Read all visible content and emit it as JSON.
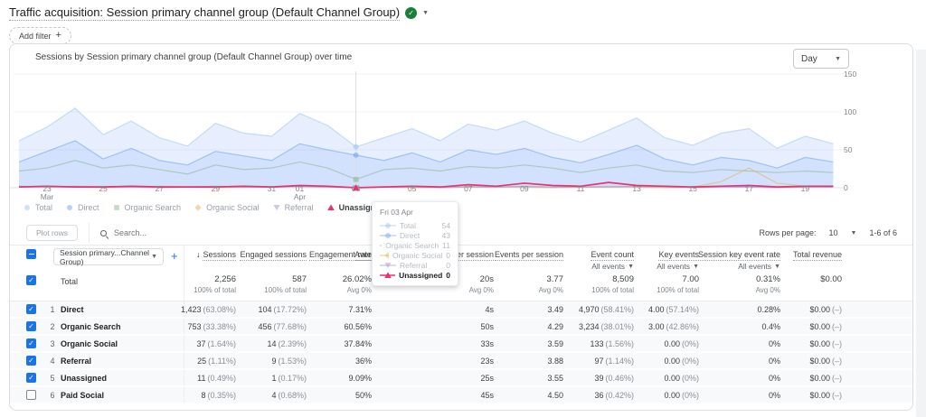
{
  "page": {
    "title": "Traffic acquisition: Session primary channel group (Default Channel Group)",
    "add_filter": "Add filter"
  },
  "chart": {
    "title": "Sessions by Session primary channel group (Default Channel Group) over time",
    "granularity": "Day"
  },
  "chart_data": {
    "type": "line",
    "title": "Sessions by Session primary channel group (Default Channel Group) over time",
    "x": [
      "Mar 22",
      "Mar 23",
      "Mar 24",
      "Mar 25",
      "Mar 26",
      "Mar 27",
      "Mar 28",
      "Mar 29",
      "Mar 30",
      "Mar 31",
      "Apr 01",
      "Apr 02",
      "Apr 03",
      "Apr 04",
      "Apr 05",
      "Apr 06",
      "Apr 07",
      "Apr 08",
      "Apr 09",
      "Apr 10",
      "Apr 11",
      "Apr 12",
      "Apr 13",
      "Apr 14",
      "Apr 15",
      "Apr 16",
      "Apr 17",
      "Apr 18",
      "Apr 19",
      "Apr 20"
    ],
    "xticks": [
      {
        "i": 1,
        "l": "23",
        "s": "Mar"
      },
      {
        "i": 3,
        "l": "25"
      },
      {
        "i": 5,
        "l": "27"
      },
      {
        "i": 7,
        "l": "29"
      },
      {
        "i": 9,
        "l": "31"
      },
      {
        "i": 10,
        "l": "01",
        "s": "Apr"
      },
      {
        "i": 12,
        "l": "03"
      },
      {
        "i": 14,
        "l": "05"
      },
      {
        "i": 16,
        "l": "07"
      },
      {
        "i": 18,
        "l": "09"
      },
      {
        "i": 20,
        "l": "11"
      },
      {
        "i": 22,
        "l": "13"
      },
      {
        "i": 24,
        "l": "15"
      },
      {
        "i": 26,
        "l": "17"
      },
      {
        "i": 28,
        "l": "19"
      }
    ],
    "ylim": [
      0,
      150
    ],
    "yticks": [
      0,
      50,
      100,
      150
    ],
    "hover_index": 12,
    "series": [
      {
        "name": "Total",
        "shape": "circle",
        "color": "#9ec4f0",
        "fill": true,
        "dim": true,
        "values": [
          62,
          80,
          105,
          70,
          88,
          66,
          55,
          85,
          72,
          68,
          98,
          82,
          54,
          66,
          78,
          62,
          84,
          76,
          88,
          72,
          60,
          76,
          92,
          66,
          56,
          72,
          78,
          52,
          68,
          58
        ]
      },
      {
        "name": "Direct",
        "shape": "circle",
        "color": "#6fa3ef",
        "fill": true,
        "dim": true,
        "values": [
          34,
          48,
          62,
          38,
          52,
          36,
          30,
          48,
          42,
          36,
          58,
          50,
          43,
          36,
          46,
          34,
          50,
          44,
          52,
          40,
          33,
          44,
          56,
          38,
          30,
          40,
          36,
          26,
          40,
          34
        ]
      },
      {
        "name": "Organic Search",
        "shape": "square",
        "color": "#8ab888",
        "dim": true,
        "values": [
          22,
          26,
          36,
          26,
          30,
          24,
          18,
          30,
          24,
          26,
          34,
          26,
          11,
          24,
          26,
          22,
          28,
          26,
          30,
          26,
          20,
          26,
          30,
          22,
          20,
          24,
          22,
          20,
          22,
          20
        ]
      },
      {
        "name": "Organic Social",
        "shape": "diamond",
        "color": "#e8b04e",
        "dim": true,
        "values": [
          1,
          2,
          1,
          0,
          1,
          2,
          1,
          0,
          1,
          1,
          2,
          1,
          0,
          1,
          0,
          1,
          2,
          1,
          1,
          0,
          1,
          2,
          1,
          0,
          1,
          8,
          26,
          6,
          2,
          1
        ]
      },
      {
        "name": "Referral",
        "shape": "tri-down",
        "color": "#9a93c9",
        "dim": true,
        "values": [
          2,
          1,
          2,
          1,
          1,
          0,
          1,
          2,
          1,
          1,
          2,
          1,
          0,
          1,
          1,
          0,
          1,
          1,
          2,
          1,
          1,
          1,
          2,
          1,
          0,
          1,
          1,
          0,
          1,
          1
        ]
      },
      {
        "name": "Unassigned",
        "shape": "tri-up",
        "color": "#e8336e",
        "dim": false,
        "values": [
          1,
          2,
          1,
          1,
          2,
          1,
          1,
          1,
          2,
          1,
          3,
          2,
          0,
          1,
          2,
          1,
          4,
          2,
          6,
          3,
          2,
          7,
          3,
          2,
          1,
          2,
          3,
          1,
          2,
          2
        ]
      }
    ]
  },
  "tooltip": {
    "date": "Fri 03 Apr",
    "rows": [
      {
        "name": "Total",
        "value": "54",
        "shape": "circle",
        "color": "#9ec4f0",
        "active": false
      },
      {
        "name": "Direct",
        "value": "43",
        "shape": "circle",
        "color": "#6fa3ef",
        "active": false
      },
      {
        "name": "Organic Search",
        "value": "11",
        "shape": "square",
        "color": "#8ab888",
        "active": false
      },
      {
        "name": "Organic Social",
        "value": "0",
        "shape": "diamond",
        "color": "#e8b04e",
        "active": false
      },
      {
        "name": "Referral",
        "value": "0",
        "shape": "tri-down",
        "color": "#9a93c9",
        "active": false
      },
      {
        "name": "Unassigned",
        "value": "0",
        "shape": "tri-up",
        "color": "#e8336e",
        "active": true
      }
    ]
  },
  "toolbar": {
    "plot_rows": "Plot rows",
    "search_placeholder": "Search...",
    "rows_per_page_label": "Rows per page:",
    "rows_per_page_value": "10",
    "range": "1-6 of 6"
  },
  "table": {
    "dimension_selector": "Session primary...Channel Group)",
    "columns": [
      {
        "label": "Sessions"
      },
      {
        "label": "Engaged sessions"
      },
      {
        "label": "Engagement rate"
      },
      {
        "label": "Average engagement time per session"
      },
      {
        "label": "Events per session"
      },
      {
        "label": "Event count",
        "sub": "All events"
      },
      {
        "label": "Key events",
        "sub": "All events"
      },
      {
        "label": "Session key event rate",
        "sub": "All events"
      },
      {
        "label": "Total revenue"
      }
    ],
    "totals": {
      "label": "Total",
      "sessions": "2,256",
      "sessions_sub": "100% of total",
      "engaged": "587",
      "engaged_sub": "100% of total",
      "rate": "26.02%",
      "rate_sub": "Avg 0%",
      "time": "20s",
      "time_sub": "Avg 0%",
      "eps": "3.77",
      "eps_sub": "Avg 0%",
      "events": "8,509",
      "events_sub": "100% of total",
      "key": "7.00",
      "key_sub": "100% of total",
      "sker": "0.31%",
      "sker_sub": "Avg 0%",
      "rev": "$0.00"
    },
    "rows": [
      {
        "num": "1",
        "channel": "Direct",
        "sessions": "1,423",
        "sessions_pct": "(63.08%)",
        "engaged": "104",
        "engaged_pct": "(17.72%)",
        "rate": "7.31%",
        "time": "4s",
        "eps": "3.49",
        "events": "4,970",
        "events_pct": "(58.41%)",
        "key": "4.00",
        "key_pct": "(57.14%)",
        "sker": "0.28%",
        "rev": "$0.00",
        "rev_sfx": "(–)",
        "checked": true
      },
      {
        "num": "2",
        "channel": "Organic Search",
        "sessions": "753",
        "sessions_pct": "(33.38%)",
        "engaged": "456",
        "engaged_pct": "(77.68%)",
        "rate": "60.56%",
        "time": "50s",
        "eps": "4.29",
        "events": "3,234",
        "events_pct": "(38.01%)",
        "key": "3.00",
        "key_pct": "(42.86%)",
        "sker": "0.4%",
        "rev": "$0.00",
        "rev_sfx": "(–)",
        "checked": true
      },
      {
        "num": "3",
        "channel": "Organic Social",
        "sessions": "37",
        "sessions_pct": "(1.64%)",
        "engaged": "14",
        "engaged_pct": "(2.39%)",
        "rate": "37.84%",
        "time": "33s",
        "eps": "3.59",
        "events": "133",
        "events_pct": "(1.56%)",
        "key": "0.00",
        "key_pct": "(0%)",
        "sker": "0%",
        "rev": "$0.00",
        "rev_sfx": "(–)",
        "checked": true
      },
      {
        "num": "4",
        "channel": "Referral",
        "sessions": "25",
        "sessions_pct": "(1.11%)",
        "engaged": "9",
        "engaged_pct": "(1.53%)",
        "rate": "36%",
        "time": "23s",
        "eps": "3.88",
        "events": "97",
        "events_pct": "(1.14%)",
        "key": "0.00",
        "key_pct": "(0%)",
        "sker": "0%",
        "rev": "$0.00",
        "rev_sfx": "(–)",
        "checked": true
      },
      {
        "num": "5",
        "channel": "Unassigned",
        "sessions": "11",
        "sessions_pct": "(0.49%)",
        "engaged": "1",
        "engaged_pct": "(0.17%)",
        "rate": "9.09%",
        "time": "25s",
        "eps": "3.55",
        "events": "39",
        "events_pct": "(0.46%)",
        "key": "0.00",
        "key_pct": "(0%)",
        "sker": "0%",
        "rev": "$0.00",
        "rev_sfx": "(–)",
        "checked": true
      },
      {
        "num": "6",
        "channel": "Paid Social",
        "sessions": "8",
        "sessions_pct": "(0.35%)",
        "engaged": "4",
        "engaged_pct": "(0.68%)",
        "rate": "50%",
        "time": "45s",
        "eps": "4.50",
        "events": "36",
        "events_pct": "(0.42%)",
        "key": "0.00",
        "key_pct": "(0%)",
        "sker": "0%",
        "rev": "$0.00",
        "rev_sfx": "(–)",
        "checked": false
      }
    ]
  }
}
